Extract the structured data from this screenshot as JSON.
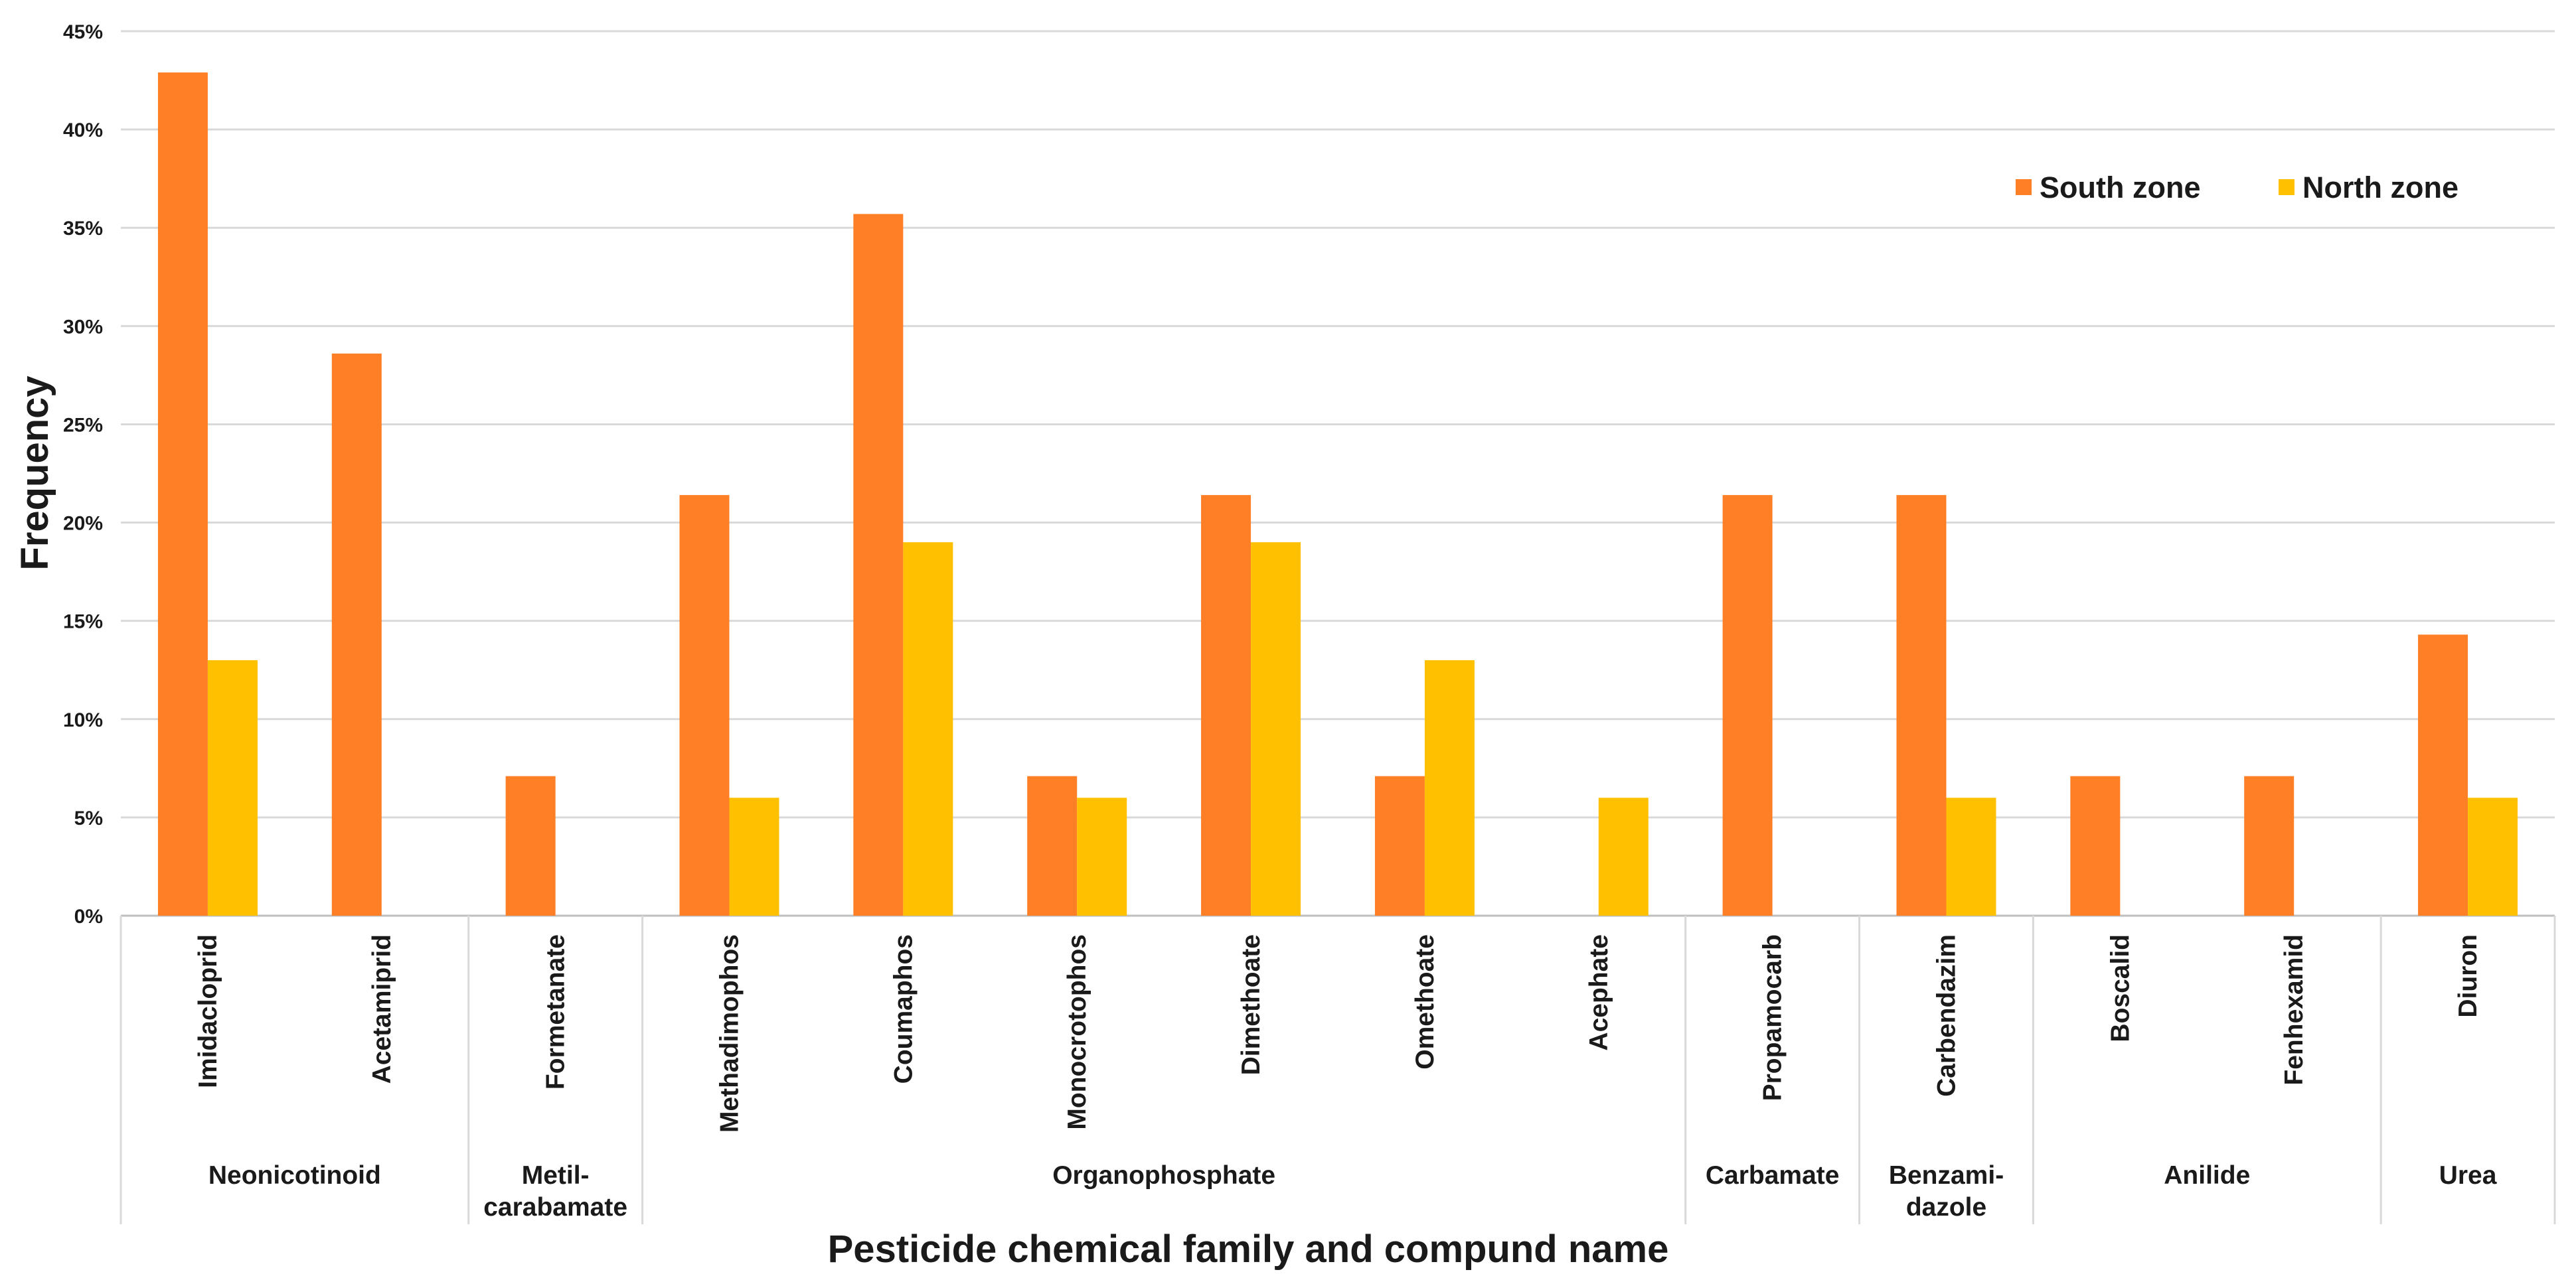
{
  "chart_data": {
    "type": "bar",
    "title": "",
    "xlabel": "Pesticide chemical family and compund name",
    "ylabel": "Frequency",
    "ylim": [
      0,
      45
    ],
    "yticks": [
      "0%",
      "5%",
      "10%",
      "15%",
      "20%",
      "25%",
      "30%",
      "35%",
      "40%",
      "45%"
    ],
    "grid": true,
    "legend_position": "top-right",
    "categories": [
      "Imidacloprid",
      "Acetamiprid",
      "Formetanate",
      "Methadimophos",
      "Coumaphos",
      "Monocrotophos",
      "Dimethoate",
      "Omethoate",
      "Acephate",
      "Propamocarb",
      "Carbendazim",
      "Boscalid",
      "Fenhexamid",
      "Diuron"
    ],
    "families": [
      {
        "lines": [
          "Neonicotinoid"
        ],
        "count": 2
      },
      {
        "lines": [
          "Metil-",
          "carabamate"
        ],
        "count": 1
      },
      {
        "lines": [
          "Organophosphate"
        ],
        "count": 6
      },
      {
        "lines": [
          "Carbamate"
        ],
        "count": 1
      },
      {
        "lines": [
          "Benzami-",
          "dazole"
        ],
        "count": 1
      },
      {
        "lines": [
          "Anilide"
        ],
        "count": 2
      },
      {
        "lines": [
          "Urea"
        ],
        "count": 1
      }
    ],
    "series": [
      {
        "name": "South zone",
        "color": "#FF7F27",
        "values": [
          42.9,
          28.6,
          7.1,
          21.4,
          35.7,
          7.1,
          21.4,
          7.1,
          0,
          21.4,
          21.4,
          7.1,
          7.1,
          14.3
        ]
      },
      {
        "name": "North zone",
        "color": "#FFC000",
        "values": [
          13.0,
          0,
          0,
          6.0,
          19.0,
          6.0,
          19.0,
          13.0,
          6.0,
          0,
          6.0,
          0,
          0,
          6.0
        ]
      }
    ]
  }
}
